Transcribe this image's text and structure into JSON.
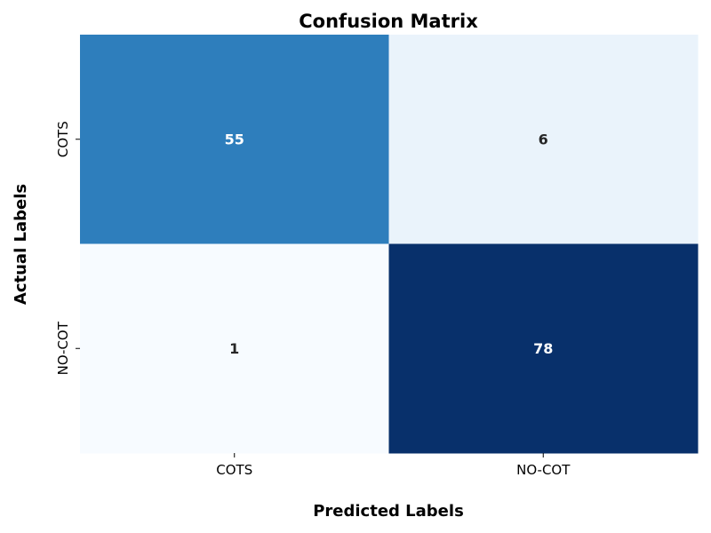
{
  "chart_data": {
    "type": "heatmap",
    "title": "Confusion Matrix",
    "xlabel": "Predicted Labels",
    "ylabel": "Actual Labels",
    "x_categories": [
      "COTS",
      "NO-COT"
    ],
    "y_categories": [
      "COTS",
      "NO-COT"
    ],
    "values": [
      [
        55,
        6
      ],
      [
        1,
        78
      ]
    ],
    "colormap": "Blues",
    "color_range": [
      1,
      78
    ],
    "colorbar": false,
    "grid": false
  }
}
